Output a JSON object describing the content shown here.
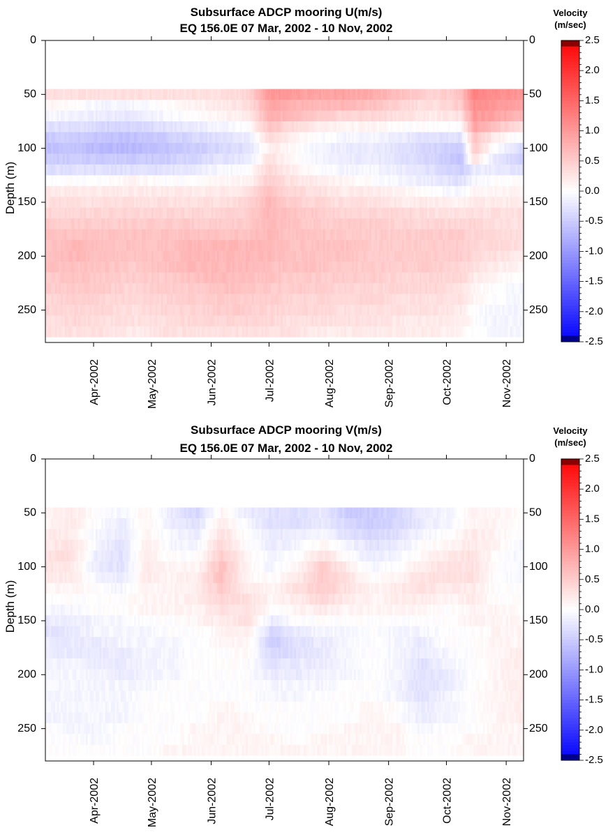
{
  "chart_data": [
    {
      "type": "heatmap",
      "title": "Subsurface ADCP mooring U(m/s)",
      "subtitle": "EQ 156.0E     07 Mar, 2002 - 10 Nov, 2002",
      "ylabel": "Depth (m)",
      "xlabel": "",
      "x_ticks": [
        "Apr-2002",
        "May-2002",
        "Jun-2002",
        "Jul-2002",
        "Aug-2002",
        "Sep-2002",
        "Oct-2002",
        "Nov-2002"
      ],
      "y_ticks": [
        "0",
        "50",
        "100",
        "150",
        "200",
        "250"
      ],
      "ylim": [
        0,
        280
      ],
      "y_reversed": true,
      "x_range": [
        "2002-03-07",
        "2002-11-10"
      ],
      "colorbar": {
        "title_line1": "Velocity",
        "title_line2": "(m/sec)",
        "ticks": [
          "2.5",
          "2.0",
          "1.5",
          "1.0",
          "0.5",
          "0.0",
          "-0.5",
          "-1.0",
          "-1.5",
          "-2.0",
          "-2.5"
        ],
        "range": [
          -2.5,
          2.5
        ],
        "colors": {
          "negative": "#0000ff",
          "zero": "#ffffff",
          "positive": "#ff0000"
        }
      },
      "depths": [
        50,
        60,
        70,
        80,
        90,
        100,
        110,
        120,
        130,
        140,
        150,
        160,
        170,
        180,
        190,
        200,
        210,
        220,
        230,
        240,
        250,
        260,
        270
      ],
      "dates": [
        "2002-03-07",
        "2002-03-22",
        "2002-04-06",
        "2002-04-21",
        "2002-05-06",
        "2002-05-21",
        "2002-06-05",
        "2002-06-20",
        "2002-07-01",
        "2002-07-10",
        "2002-07-25",
        "2002-08-09",
        "2002-08-24",
        "2002-09-08",
        "2002-09-23",
        "2002-10-08",
        "2002-10-15",
        "2002-10-25",
        "2002-11-10"
      ],
      "values": [
        [
          0.3,
          0.3,
          0.3,
          0.3,
          0.3,
          0.3,
          0.3,
          0.4,
          1.0,
          1.0,
          0.9,
          0.9,
          0.8,
          0.6,
          0.4,
          0.6,
          1.2,
          1.1,
          1.0
        ],
        [
          0.1,
          0.0,
          -0.1,
          -0.1,
          0.0,
          0.1,
          0.2,
          0.3,
          0.9,
          0.8,
          0.7,
          0.7,
          0.6,
          0.4,
          0.3,
          0.5,
          1.1,
          1.0,
          0.9
        ],
        [
          -0.1,
          -0.1,
          -0.2,
          -0.2,
          -0.1,
          0.0,
          0.1,
          0.2,
          0.8,
          0.7,
          0.5,
          0.4,
          0.4,
          0.3,
          0.2,
          0.3,
          1.0,
          0.9,
          0.7
        ],
        [
          -0.3,
          -0.3,
          -0.4,
          -0.4,
          -0.3,
          -0.2,
          -0.1,
          0.0,
          0.6,
          0.4,
          0.2,
          0.1,
          0.1,
          0.0,
          0.0,
          0.0,
          0.9,
          0.6,
          0.3
        ],
        [
          -0.5,
          -0.5,
          -0.6,
          -0.6,
          -0.5,
          -0.4,
          -0.3,
          -0.2,
          0.4,
          0.2,
          0.0,
          -0.1,
          -0.1,
          -0.2,
          -0.3,
          -0.3,
          0.6,
          0.2,
          -0.1
        ],
        [
          -0.6,
          -0.6,
          -0.7,
          -0.7,
          -0.6,
          -0.5,
          -0.4,
          -0.3,
          0.2,
          0.1,
          -0.1,
          -0.2,
          -0.2,
          -0.3,
          -0.4,
          -0.5,
          0.5,
          0.0,
          -0.4
        ],
        [
          -0.5,
          -0.5,
          -0.5,
          -0.5,
          -0.5,
          -0.4,
          -0.3,
          -0.2,
          0.3,
          0.1,
          -0.1,
          -0.2,
          -0.2,
          -0.3,
          -0.4,
          -0.6,
          0.3,
          -0.2,
          -0.5
        ],
        [
          -0.3,
          -0.3,
          -0.3,
          -0.3,
          -0.3,
          -0.2,
          -0.1,
          0.0,
          0.4,
          0.2,
          0.0,
          -0.1,
          -0.1,
          -0.2,
          -0.3,
          -0.5,
          -0.2,
          -0.2,
          -0.3
        ],
        [
          0.0,
          0.0,
          0.0,
          0.1,
          0.0,
          0.0,
          0.1,
          0.1,
          0.5,
          0.3,
          0.2,
          0.1,
          0.0,
          -0.1,
          -0.2,
          -0.3,
          -0.1,
          0.0,
          0.0
        ],
        [
          0.2,
          0.2,
          0.2,
          0.2,
          0.2,
          0.2,
          0.2,
          0.3,
          0.6,
          0.4,
          0.3,
          0.2,
          0.2,
          0.1,
          0.0,
          -0.1,
          0.1,
          0.1,
          0.1
        ],
        [
          0.3,
          0.3,
          0.3,
          0.3,
          0.3,
          0.3,
          0.3,
          0.4,
          0.7,
          0.5,
          0.4,
          0.3,
          0.3,
          0.2,
          0.2,
          0.1,
          0.2,
          0.2,
          0.2
        ],
        [
          0.4,
          0.4,
          0.4,
          0.4,
          0.4,
          0.4,
          0.4,
          0.5,
          0.7,
          0.6,
          0.5,
          0.4,
          0.4,
          0.4,
          0.3,
          0.3,
          0.3,
          0.3,
          0.3
        ],
        [
          0.5,
          0.5,
          0.5,
          0.5,
          0.5,
          0.5,
          0.5,
          0.5,
          0.7,
          0.6,
          0.5,
          0.5,
          0.5,
          0.4,
          0.4,
          0.4,
          0.4,
          0.3,
          0.3
        ],
        [
          0.6,
          0.6,
          0.6,
          0.6,
          0.6,
          0.6,
          0.6,
          0.6,
          0.7,
          0.6,
          0.6,
          0.5,
          0.5,
          0.5,
          0.5,
          0.5,
          0.4,
          0.4,
          0.3
        ],
        [
          0.6,
          0.7,
          0.6,
          0.6,
          0.6,
          0.7,
          0.7,
          0.7,
          0.7,
          0.6,
          0.6,
          0.6,
          0.5,
          0.5,
          0.5,
          0.5,
          0.4,
          0.4,
          0.3
        ],
        [
          0.6,
          0.7,
          0.6,
          0.6,
          0.6,
          0.7,
          0.7,
          0.7,
          0.7,
          0.6,
          0.6,
          0.6,
          0.5,
          0.5,
          0.5,
          0.5,
          0.4,
          0.3,
          0.2
        ],
        [
          0.6,
          0.6,
          0.6,
          0.5,
          0.6,
          0.7,
          0.7,
          0.7,
          0.6,
          0.6,
          0.6,
          0.5,
          0.5,
          0.5,
          0.5,
          0.4,
          0.3,
          0.2,
          0.1
        ],
        [
          0.5,
          0.6,
          0.5,
          0.5,
          0.5,
          0.6,
          0.7,
          0.6,
          0.6,
          0.5,
          0.5,
          0.5,
          0.5,
          0.4,
          0.4,
          0.4,
          0.2,
          0.1,
          0.0
        ],
        [
          0.5,
          0.5,
          0.5,
          0.4,
          0.5,
          0.5,
          0.6,
          0.6,
          0.5,
          0.5,
          0.5,
          0.4,
          0.4,
          0.4,
          0.4,
          0.3,
          0.1,
          0.0,
          -0.1
        ],
        [
          0.4,
          0.5,
          0.4,
          0.4,
          0.4,
          0.5,
          0.5,
          0.5,
          0.5,
          0.4,
          0.4,
          0.4,
          0.4,
          0.3,
          0.3,
          0.3,
          0.1,
          0.0,
          -0.1
        ],
        [
          0.4,
          0.4,
          0.4,
          0.3,
          0.4,
          0.4,
          0.5,
          0.5,
          0.4,
          0.4,
          0.4,
          0.3,
          0.3,
          0.3,
          0.3,
          0.2,
          0.0,
          -0.1,
          -0.1
        ],
        [
          0.3,
          0.4,
          0.3,
          0.3,
          0.3,
          0.4,
          0.4,
          0.4,
          0.4,
          0.3,
          0.3,
          0.3,
          0.3,
          0.2,
          0.2,
          0.2,
          0.0,
          -0.1,
          -0.1
        ],
        [
          0.3,
          0.3,
          0.3,
          0.2,
          0.3,
          0.3,
          0.3,
          0.3,
          0.3,
          0.3,
          0.2,
          0.2,
          0.2,
          0.2,
          0.2,
          0.1,
          0.0,
          -0.1,
          -0.1
        ]
      ]
    },
    {
      "type": "heatmap",
      "title": "Subsurface ADCP mooring V(m/s)",
      "subtitle": "EQ 156.0E     07 Mar, 2002 - 10 Nov, 2002",
      "ylabel": "Depth (m)",
      "xlabel": "",
      "x_ticks": [
        "Apr-2002",
        "May-2002",
        "Jun-2002",
        "Jul-2002",
        "Aug-2002",
        "Sep-2002",
        "Oct-2002",
        "Nov-2002"
      ],
      "y_ticks": [
        "0",
        "50",
        "100",
        "150",
        "200",
        "250"
      ],
      "ylim": [
        0,
        280
      ],
      "y_reversed": true,
      "x_range": [
        "2002-03-07",
        "2002-11-10"
      ],
      "colorbar": {
        "title_line1": "Velocity",
        "title_line2": "(m/sec)",
        "ticks": [
          "2.5",
          "2.0",
          "1.5",
          "1.0",
          "0.5",
          "0.0",
          "-0.5",
          "-1.0",
          "-1.5",
          "-2.0",
          "-2.5"
        ],
        "range": [
          -2.5,
          2.5
        ],
        "colors": {
          "negative": "#0000ff",
          "zero": "#ffffff",
          "positive": "#ff0000"
        }
      },
      "depths": [
        50,
        60,
        70,
        80,
        90,
        100,
        110,
        120,
        130,
        140,
        150,
        160,
        170,
        180,
        190,
        200,
        210,
        220,
        230,
        240,
        250,
        260,
        270
      ],
      "dates": [
        "2002-03-07",
        "2002-03-20",
        "2002-04-02",
        "2002-04-15",
        "2002-04-28",
        "2002-05-11",
        "2002-05-24",
        "2002-06-06",
        "2002-06-19",
        "2002-07-02",
        "2002-07-15",
        "2002-07-28",
        "2002-08-10",
        "2002-08-23",
        "2002-09-05",
        "2002-09-18",
        "2002-10-01",
        "2002-10-14",
        "2002-10-27",
        "2002-11-10"
      ],
      "values": [
        [
          0.1,
          0.2,
          0.0,
          -0.1,
          0.1,
          -0.2,
          -0.4,
          0.1,
          -0.2,
          -0.3,
          -0.3,
          -0.2,
          -0.5,
          -0.5,
          -0.4,
          -0.2,
          -0.1,
          0.1,
          0.1,
          0.0
        ],
        [
          0.1,
          0.2,
          0.0,
          -0.2,
          0.1,
          -0.2,
          -0.3,
          0.2,
          -0.1,
          -0.3,
          -0.3,
          -0.2,
          -0.4,
          -0.5,
          -0.4,
          -0.2,
          -0.1,
          0.1,
          0.1,
          0.0
        ],
        [
          0.2,
          0.2,
          -0.1,
          -0.2,
          0.1,
          -0.1,
          -0.2,
          0.3,
          0.0,
          -0.2,
          -0.2,
          -0.1,
          -0.3,
          -0.4,
          -0.3,
          -0.1,
          0.0,
          0.2,
          0.1,
          0.0
        ],
        [
          0.2,
          0.3,
          -0.1,
          -0.3,
          0.2,
          -0.1,
          -0.1,
          0.4,
          0.0,
          -0.2,
          -0.1,
          0.1,
          -0.1,
          -0.3,
          -0.2,
          0.0,
          0.1,
          0.2,
          0.1,
          -0.1
        ],
        [
          0.3,
          0.3,
          -0.2,
          -0.3,
          0.2,
          0.0,
          0.0,
          0.5,
          0.1,
          -0.1,
          0.0,
          0.3,
          0.0,
          -0.2,
          -0.1,
          0.1,
          0.2,
          0.3,
          0.0,
          -0.1
        ],
        [
          0.3,
          0.2,
          -0.2,
          -0.3,
          0.2,
          0.1,
          0.1,
          0.6,
          0.1,
          -0.1,
          0.1,
          0.5,
          0.2,
          -0.1,
          0.0,
          0.2,
          0.3,
          0.3,
          0.0,
          -0.1
        ],
        [
          0.2,
          0.2,
          -0.1,
          -0.2,
          0.2,
          0.1,
          0.2,
          0.6,
          0.1,
          0.0,
          0.2,
          0.5,
          0.3,
          0.0,
          0.1,
          0.3,
          0.3,
          0.3,
          0.0,
          -0.1
        ],
        [
          0.1,
          0.1,
          0.0,
          -0.1,
          0.1,
          0.1,
          0.2,
          0.5,
          0.2,
          0.1,
          0.3,
          0.5,
          0.3,
          0.1,
          0.2,
          0.3,
          0.2,
          0.2,
          0.0,
          0.0
        ],
        [
          0.0,
          0.0,
          0.0,
          0.0,
          0.1,
          0.1,
          0.2,
          0.4,
          0.3,
          0.1,
          0.2,
          0.4,
          0.2,
          0.1,
          0.2,
          0.2,
          0.1,
          0.2,
          0.0,
          0.0
        ],
        [
          -0.1,
          -0.1,
          0.0,
          0.0,
          0.1,
          0.1,
          0.1,
          0.3,
          0.3,
          0.0,
          0.1,
          0.2,
          0.1,
          0.1,
          0.1,
          0.1,
          0.0,
          0.1,
          0.1,
          0.0
        ],
        [
          -0.2,
          -0.2,
          -0.1,
          -0.1,
          0.0,
          0.0,
          0.1,
          0.2,
          0.3,
          -0.2,
          0.0,
          0.0,
          0.0,
          0.0,
          0.0,
          0.0,
          0.0,
          0.1,
          0.1,
          0.1
        ],
        [
          -0.3,
          -0.2,
          -0.1,
          -0.1,
          -0.1,
          0.0,
          0.0,
          0.1,
          0.2,
          -0.4,
          -0.2,
          -0.1,
          -0.1,
          0.0,
          -0.1,
          -0.1,
          0.0,
          0.0,
          0.1,
          0.1
        ],
        [
          -0.2,
          -0.2,
          -0.2,
          -0.1,
          -0.1,
          -0.1,
          0.0,
          0.1,
          0.1,
          -0.5,
          -0.3,
          -0.2,
          -0.1,
          0.0,
          -0.1,
          -0.2,
          0.0,
          0.0,
          0.1,
          0.1
        ],
        [
          -0.2,
          -0.2,
          -0.2,
          -0.2,
          -0.1,
          -0.1,
          0.0,
          0.0,
          0.1,
          -0.4,
          -0.3,
          -0.2,
          -0.1,
          0.0,
          -0.1,
          -0.2,
          -0.1,
          0.0,
          0.1,
          0.2
        ],
        [
          -0.1,
          -0.1,
          -0.2,
          -0.2,
          -0.1,
          -0.1,
          0.0,
          0.0,
          0.0,
          -0.3,
          -0.2,
          -0.2,
          -0.1,
          0.0,
          -0.1,
          -0.3,
          -0.1,
          0.0,
          0.1,
          0.2
        ],
        [
          -0.1,
          -0.1,
          -0.1,
          -0.2,
          -0.1,
          -0.1,
          0.0,
          0.0,
          0.0,
          -0.2,
          -0.2,
          -0.1,
          -0.1,
          0.0,
          -0.1,
          -0.3,
          -0.2,
          0.0,
          0.1,
          0.2
        ],
        [
          -0.1,
          -0.1,
          -0.1,
          -0.1,
          -0.1,
          0.0,
          0.0,
          0.0,
          0.0,
          -0.1,
          -0.1,
          -0.1,
          0.0,
          0.0,
          -0.1,
          -0.3,
          -0.2,
          0.0,
          0.1,
          0.2
        ],
        [
          -0.1,
          -0.1,
          -0.1,
          -0.1,
          0.0,
          0.0,
          0.0,
          0.0,
          0.0,
          -0.1,
          -0.1,
          0.0,
          0.0,
          0.0,
          -0.1,
          -0.3,
          -0.1,
          0.0,
          0.1,
          0.2
        ],
        [
          -0.1,
          -0.1,
          -0.1,
          -0.1,
          0.0,
          0.0,
          0.0,
          0.1,
          0.0,
          0.0,
          0.0,
          0.0,
          0.0,
          0.1,
          0.0,
          -0.2,
          -0.1,
          0.0,
          0.1,
          0.2
        ],
        [
          -0.1,
          -0.1,
          -0.1,
          -0.1,
          0.0,
          0.0,
          0.0,
          0.1,
          0.1,
          0.0,
          0.0,
          0.0,
          0.0,
          0.1,
          0.0,
          -0.2,
          -0.1,
          0.0,
          0.1,
          0.2
        ],
        [
          0.0,
          -0.1,
          -0.1,
          0.0,
          0.0,
          0.0,
          0.1,
          0.1,
          0.1,
          0.0,
          0.0,
          0.0,
          0.1,
          0.1,
          0.1,
          -0.1,
          0.0,
          0.0,
          0.1,
          0.1
        ],
        [
          0.0,
          0.0,
          -0.1,
          0.0,
          0.0,
          0.0,
          0.1,
          0.1,
          0.1,
          0.1,
          0.0,
          0.1,
          0.1,
          0.1,
          0.1,
          0.0,
          0.0,
          0.1,
          0.1,
          0.1
        ],
        [
          0.0,
          0.0,
          0.0,
          0.0,
          0.0,
          0.1,
          0.1,
          0.1,
          0.1,
          0.1,
          0.1,
          0.1,
          0.1,
          0.1,
          0.1,
          0.0,
          0.0,
          0.1,
          0.1,
          0.1
        ]
      ]
    }
  ]
}
